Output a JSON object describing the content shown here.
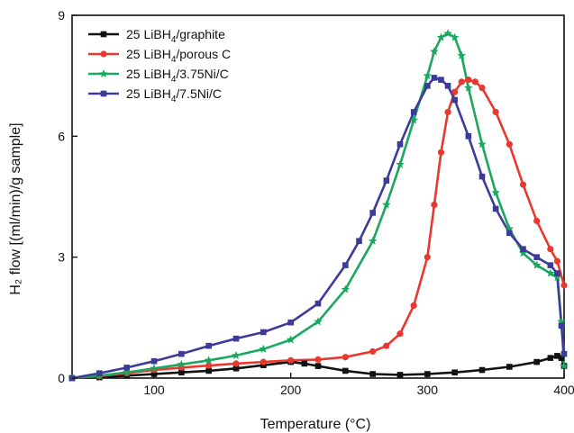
{
  "chart_data": {
    "type": "line",
    "title": "",
    "xlabel": "Temperature (°C)",
    "ylabel": "H₂ flow [(ml/min)/g sample]",
    "xlim": [
      40,
      400
    ],
    "ylim": [
      0,
      9
    ],
    "xticks": [
      100,
      200,
      300,
      400
    ],
    "yticks": [
      0,
      3,
      6,
      9
    ],
    "grid": false,
    "legend_position": "top-left",
    "series": [
      {
        "name": "25 LiBH4/graphite",
        "name_main": "25 LiBH",
        "name_sub": "4",
        "name_rest": "/graphite",
        "color": "#111111",
        "marker": "square",
        "x": [
          40,
          60,
          80,
          100,
          120,
          140,
          160,
          180,
          200,
          210,
          220,
          240,
          260,
          280,
          300,
          320,
          340,
          360,
          380,
          390,
          395,
          398,
          400
        ],
        "y": [
          0,
          0.02,
          0.06,
          0.1,
          0.14,
          0.18,
          0.24,
          0.32,
          0.4,
          0.36,
          0.3,
          0.18,
          0.1,
          0.08,
          0.1,
          0.14,
          0.2,
          0.28,
          0.4,
          0.5,
          0.55,
          0.5,
          0.3
        ]
      },
      {
        "name": "25 LiBH4/porous C",
        "name_main": "25 LiBH",
        "name_sub": "4",
        "name_rest": "/porous C",
        "color": "#e8382f",
        "marker": "circle",
        "x": [
          40,
          60,
          80,
          100,
          120,
          140,
          160,
          180,
          200,
          220,
          240,
          260,
          270,
          280,
          290,
          300,
          305,
          310,
          315,
          320,
          325,
          330,
          335,
          340,
          350,
          360,
          370,
          380,
          390,
          395,
          400
        ],
        "y": [
          0,
          0.05,
          0.12,
          0.2,
          0.26,
          0.31,
          0.36,
          0.4,
          0.44,
          0.46,
          0.52,
          0.66,
          0.8,
          1.1,
          1.8,
          3.0,
          4.3,
          5.6,
          6.6,
          7.1,
          7.35,
          7.4,
          7.35,
          7.2,
          6.6,
          5.8,
          4.8,
          3.9,
          3.2,
          2.9,
          2.3
        ]
      },
      {
        "name": "25 LiBH4/3.75Ni/C",
        "name_main": "25 LiBH",
        "name_sub": "4",
        "name_rest": "/3.75Ni/C",
        "color": "#1aa85f",
        "marker": "star",
        "x": [
          40,
          60,
          80,
          100,
          120,
          140,
          160,
          180,
          200,
          220,
          240,
          260,
          270,
          280,
          290,
          300,
          305,
          310,
          315,
          320,
          325,
          330,
          340,
          350,
          360,
          370,
          380,
          390,
          395,
          398,
          400
        ],
        "y": [
          0,
          0.06,
          0.14,
          0.24,
          0.34,
          0.44,
          0.56,
          0.72,
          0.95,
          1.4,
          2.2,
          3.4,
          4.3,
          5.3,
          6.4,
          7.5,
          8.1,
          8.45,
          8.55,
          8.45,
          8.0,
          7.2,
          5.8,
          4.6,
          3.7,
          3.1,
          2.8,
          2.6,
          2.5,
          1.4,
          0.3
        ]
      },
      {
        "name": "25 LiBH4/7.5Ni/C",
        "name_main": "25 LiBH",
        "name_sub": "4",
        "name_rest": "/7.5Ni/C",
        "color": "#3d3b9a",
        "marker": "square",
        "x": [
          40,
          60,
          80,
          100,
          120,
          140,
          160,
          180,
          200,
          220,
          240,
          250,
          260,
          270,
          280,
          290,
          300,
          305,
          310,
          315,
          320,
          330,
          340,
          350,
          360,
          370,
          380,
          390,
          395,
          398,
          400
        ],
        "y": [
          0,
          0.12,
          0.26,
          0.42,
          0.6,
          0.8,
          0.98,
          1.14,
          1.38,
          1.85,
          2.8,
          3.4,
          4.1,
          4.9,
          5.8,
          6.6,
          7.25,
          7.45,
          7.4,
          7.25,
          6.9,
          6.0,
          5.0,
          4.2,
          3.6,
          3.2,
          3.0,
          2.8,
          2.6,
          1.3,
          0.6
        ]
      }
    ]
  }
}
